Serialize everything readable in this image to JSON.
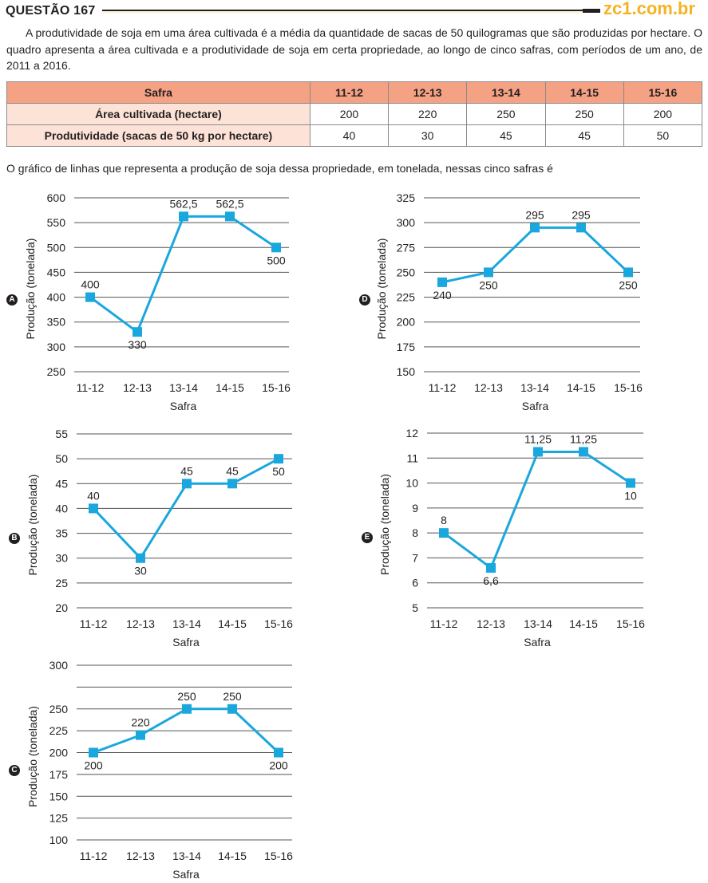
{
  "header": {
    "question_title": "QUESTÃO 167",
    "site": "zc1.com.br"
  },
  "intro_paragraph": "A produtividade de soja em uma área cultivada é a média da quantidade de sacas de 50 quilogramas que são produzidas por hectare. O quadro apresenta a área cultivada e a produtividade de soja em certa propriedade, ao longo de cinco safras, com períodos de um ano, de 2011 a 2016.",
  "table": {
    "header": [
      "Safra",
      "11-12",
      "12-13",
      "13-14",
      "14-15",
      "15-16"
    ],
    "rows": [
      {
        "label": "Área cultivada (hectare)",
        "values": [
          "200",
          "220",
          "250",
          "250",
          "200"
        ]
      },
      {
        "label": "Produtividade (sacas de 50 kg por hectare)",
        "values": [
          "40",
          "30",
          "45",
          "45",
          "50"
        ]
      }
    ]
  },
  "lead_text": "O gráfico de linhas que representa a produção de soja dessa propriedade, em tonelada, nessas cinco safras é",
  "colors": {
    "line": "#1aa7de",
    "grid": "#555555",
    "table_header": "#f4a184",
    "table_rowhead": "#fde3d7",
    "site": "#f5b323"
  },
  "chart_data": [
    {
      "option": "A",
      "type": "line",
      "categories": [
        "11-12",
        "12-13",
        "13-14",
        "14-15",
        "15-16"
      ],
      "values": [
        400,
        330,
        562.5,
        562.5,
        500
      ],
      "data_labels": [
        "400",
        "330",
        "562,5",
        "562,5",
        "500"
      ],
      "label_pos": [
        "above",
        "below",
        "above",
        "above",
        "below"
      ],
      "yticks": [
        250,
        300,
        350,
        400,
        450,
        500,
        550,
        600
      ],
      "ytick_labels": [
        "250",
        "300",
        "350",
        "400",
        "450",
        "500",
        "550",
        "600"
      ],
      "ylim": [
        250,
        600
      ],
      "xlabel": "Safra",
      "ylabel": "Produção (tonelada)",
      "grid": true
    },
    {
      "option": "D",
      "type": "line",
      "categories": [
        "11-12",
        "12-13",
        "13-14",
        "14-15",
        "15-16"
      ],
      "values": [
        240,
        250,
        295,
        295,
        250
      ],
      "data_labels": [
        "240",
        "250",
        "295",
        "295",
        "250"
      ],
      "label_pos": [
        "below",
        "below",
        "above",
        "above",
        "below"
      ],
      "yticks": [
        150,
        175,
        200,
        225,
        250,
        275,
        300,
        325
      ],
      "ytick_labels": [
        "150",
        "175",
        "200",
        "225",
        "250",
        "275",
        "300",
        "325"
      ],
      "ylim": [
        150,
        325
      ],
      "xlabel": "Safra",
      "ylabel": "Produção (tonelada)",
      "grid": true
    },
    {
      "option": "B",
      "type": "line",
      "categories": [
        "11-12",
        "12-13",
        "13-14",
        "14-15",
        "15-16"
      ],
      "values": [
        40,
        30,
        45,
        45,
        50
      ],
      "data_labels": [
        "40",
        "30",
        "45",
        "45",
        "50"
      ],
      "label_pos": [
        "above",
        "below",
        "above",
        "above",
        "below"
      ],
      "yticks": [
        20,
        25,
        30,
        35,
        40,
        45,
        50,
        55
      ],
      "ytick_labels": [
        "20",
        "25",
        "30",
        "35",
        "40",
        "45",
        "50",
        "55"
      ],
      "ylim": [
        20,
        55
      ],
      "xlabel": "Safra",
      "ylabel": "Produção (tonelada)",
      "grid": true
    },
    {
      "option": "E",
      "type": "line",
      "categories": [
        "11-12",
        "12-13",
        "13-14",
        "14-15",
        "15-16"
      ],
      "values": [
        8,
        6.6,
        11.25,
        11.25,
        10
      ],
      "data_labels": [
        "8",
        "6,6",
        "11,25",
        "11,25",
        "10"
      ],
      "label_pos": [
        "above",
        "below",
        "above",
        "above",
        "below"
      ],
      "yticks": [
        5,
        6,
        7,
        8,
        9,
        10,
        11,
        12
      ],
      "ytick_labels": [
        "5",
        "6",
        "7",
        "8",
        "9",
        "10",
        "11",
        "12"
      ],
      "ylim": [
        5,
        12
      ],
      "xlabel": "Safra",
      "ylabel": "Produção (tonelada)",
      "grid": true
    },
    {
      "option": "C",
      "type": "line",
      "categories": [
        "11-12",
        "12-13",
        "13-14",
        "14-15",
        "15-16"
      ],
      "values": [
        200,
        220,
        250,
        250,
        200
      ],
      "data_labels": [
        "200",
        "220",
        "250",
        "250",
        "200"
      ],
      "label_pos": [
        "below",
        "above",
        "above",
        "above",
        "below"
      ],
      "yticks": [
        100,
        125,
        150,
        175,
        200,
        225,
        250,
        275,
        300
      ],
      "ytick_labels": [
        "100",
        "125",
        "150",
        "175",
        "200",
        "225",
        "250",
        "",
        "300"
      ],
      "ylim": [
        100,
        300
      ],
      "xlabel": "Safra",
      "ylabel": "Produção (tonelada)",
      "grid": true
    }
  ]
}
